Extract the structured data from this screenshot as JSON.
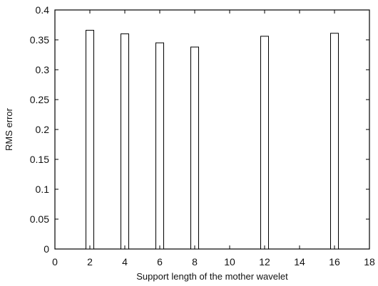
{
  "chart_data": {
    "type": "bar",
    "xlabel": "Support length of the mother wavelet",
    "ylabel": "RMS error",
    "xlim": [
      0,
      18
    ],
    "ylim": [
      0,
      0.4
    ],
    "xticks": [
      "0",
      "2",
      "4",
      "6",
      "8",
      "10",
      "12",
      "14",
      "16",
      "18"
    ],
    "yticks": [
      "0",
      "0.05",
      "0.1",
      "0.15",
      "0.2",
      "0.25",
      "0.3",
      "0.35",
      "0.4"
    ],
    "x": [
      2,
      4,
      6,
      8,
      12,
      16
    ],
    "values": [
      0.366,
      0.36,
      0.345,
      0.338,
      0.356,
      0.361
    ],
    "bar_fill": "#ffffff",
    "bar_stroke": "#000000",
    "grid": false
  }
}
